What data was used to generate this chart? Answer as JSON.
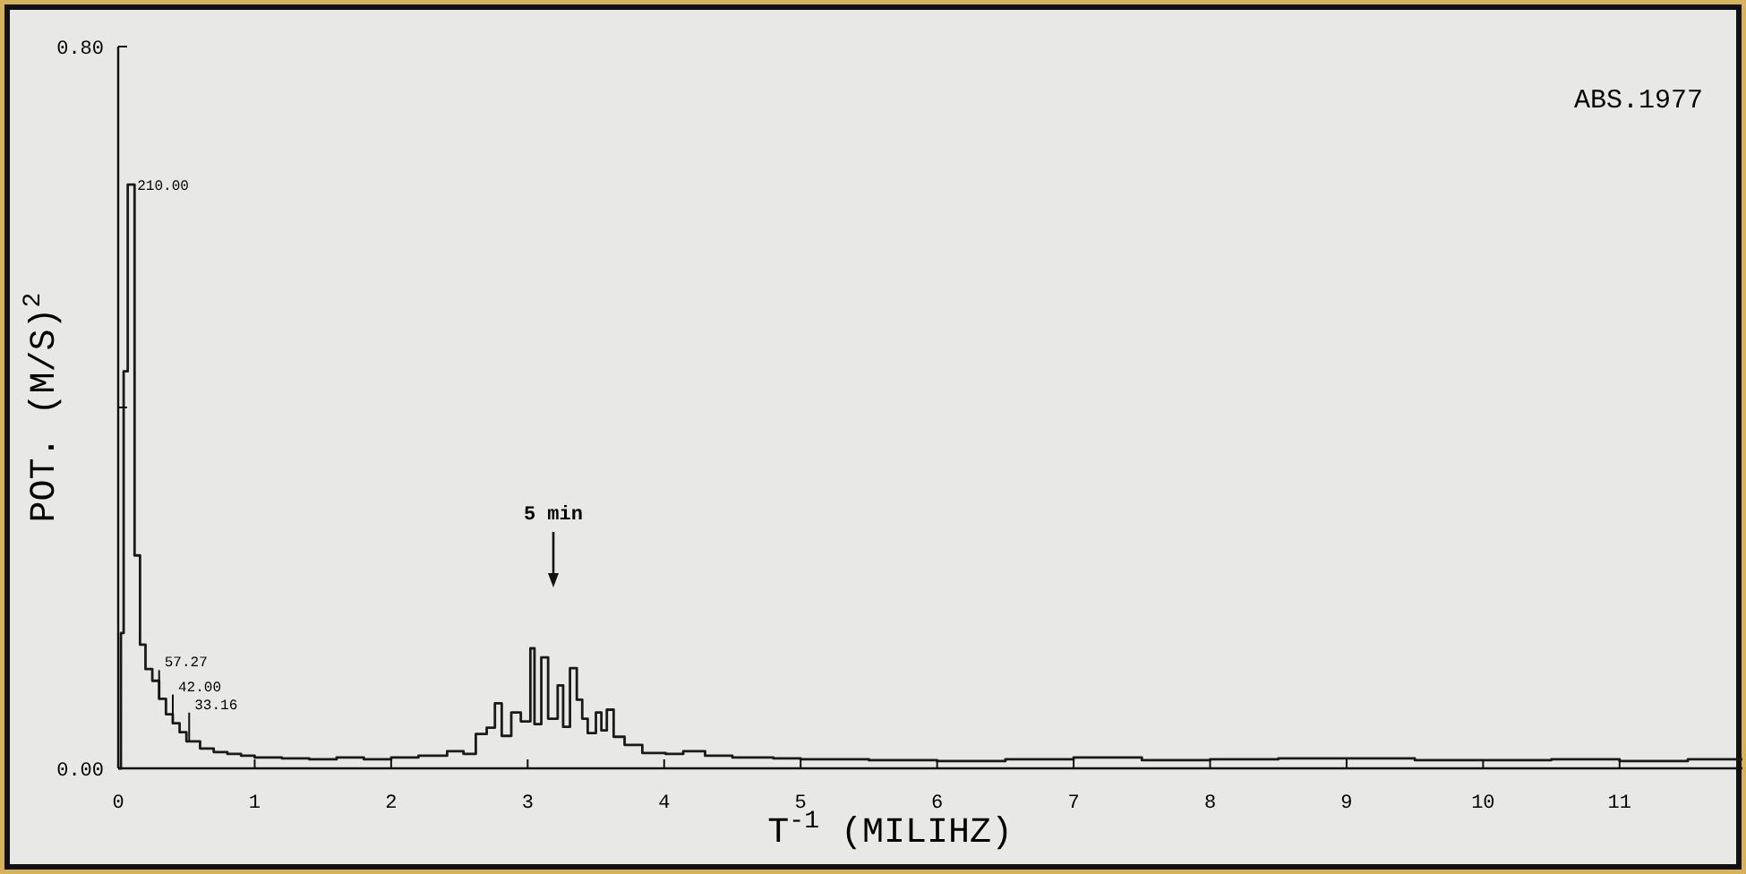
{
  "chart_data": {
    "type": "step",
    "xlabel": "T$^{-1}$ (MILIHZ)",
    "ylabel": "POT. (M/S)$^{2}$",
    "xlim": [
      0,
      11.9
    ],
    "ylim": [
      0,
      0.8
    ],
    "xticks": [
      0,
      1,
      2,
      3,
      4,
      5,
      6,
      7,
      8,
      9,
      10,
      11
    ],
    "yticks": [
      {
        "value": 0,
        "label": "0.00"
      },
      {
        "value": 0.4,
        "label": null
      },
      {
        "value": 0.8,
        "label": "0.80"
      }
    ],
    "grid": false,
    "marker": "none",
    "line_style": "solid",
    "series": [
      {
        "color": "#1a1a1a",
        "x": [
          0,
          0.02,
          0.04,
          0.07,
          0.12,
          0.16,
          0.2,
          0.25,
          0.3,
          0.35,
          0.4,
          0.45,
          0.5,
          0.6,
          0.7,
          0.8,
          0.9,
          1.0,
          1.2,
          1.4,
          1.6,
          1.8,
          2.0,
          2.2,
          2.41,
          2.53,
          2.62,
          2.7,
          2.76,
          2.81,
          2.88,
          2.95,
          3.02,
          3.05,
          3.1,
          3.15,
          3.22,
          3.26,
          3.31,
          3.36,
          3.4,
          3.44,
          3.5,
          3.54,
          3.58,
          3.63,
          3.71,
          3.84,
          4.01,
          4.14,
          4.3,
          4.5,
          4.8,
          5.0,
          5.5,
          6.0,
          6.5,
          7.0,
          7.5,
          8.0,
          8.5,
          9.0,
          9.5,
          10.0,
          10.5,
          11.0,
          11.5,
          11.9
        ],
        "values": [
          0,
          0.15,
          0.44,
          0.647,
          0.236,
          0.137,
          0.11,
          0.097,
          0.077,
          0.06,
          0.05,
          0.04,
          0.03,
          0.022,
          0.018,
          0.016,
          0.014,
          0.012,
          0.011,
          0.01,
          0.012,
          0.01,
          0.012,
          0.014,
          0.019,
          0.016,
          0.038,
          0.045,
          0.072,
          0.036,
          0.062,
          0.052,
          0.133,
          0.049,
          0.123,
          0.055,
          0.092,
          0.046,
          0.111,
          0.076,
          0.055,
          0.039,
          0.062,
          0.042,
          0.065,
          0.035,
          0.026,
          0.017,
          0.016,
          0.019,
          0.014,
          0.012,
          0.011,
          0.01,
          0.009,
          0.008,
          0.01,
          0.012,
          0.009,
          0.01,
          0.011,
          0.011,
          0.009,
          0.009,
          0.01,
          0.008,
          0.01,
          0.01
        ]
      }
    ],
    "annotations": [
      "ABS.1977",
      {
        "text": "210.00",
        "x": 0.1,
        "y": 0.647
      },
      {
        "text": "57.27",
        "x": 0.3,
        "y": 0.077
      },
      {
        "text": "42.00",
        "x": 0.4,
        "y": 0.05
      },
      {
        "text": "33.16",
        "x": 0.52,
        "y": 0.03
      },
      "5 min"
    ]
  }
}
